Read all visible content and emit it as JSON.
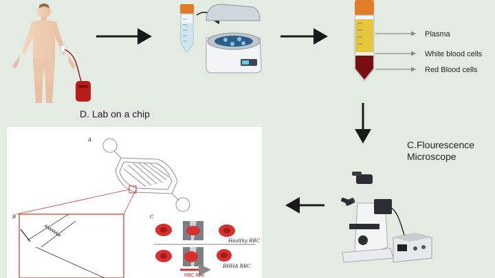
{
  "labels": {
    "plasma": "Plasma",
    "white_blood_cells": "White blood cells",
    "red_blood_cells": "Red Blood cells",
    "lab_on_chip": "D. Lab on a chip",
    "fluorescence_line1": "C.Flourescence",
    "fluorescence_line2": "Microscope"
  },
  "chip_figure": {
    "panel_a": "A",
    "panel_b": "B",
    "panel_c": "C",
    "healthy_rbc": "Healthy RBC",
    "rhha_rbc": "RHHA RBC",
    "rbc_flow": "RBC flow"
  },
  "colors": {
    "background": "#e4ebe2",
    "arrow": "#1a1a1a",
    "label_arrow": "#8a8a8a",
    "tube_cap": "#e07b28",
    "plasma": "#e6c63a",
    "red_cells": "#7a0f12",
    "chip_red": "#c8322a"
  },
  "icons": [
    "human-figure-icon",
    "blood-bag-icon",
    "centrifuge-tube-icon",
    "centrifuge-icon",
    "separated-tube-icon",
    "microscope-icon",
    "power-supply-icon"
  ]
}
